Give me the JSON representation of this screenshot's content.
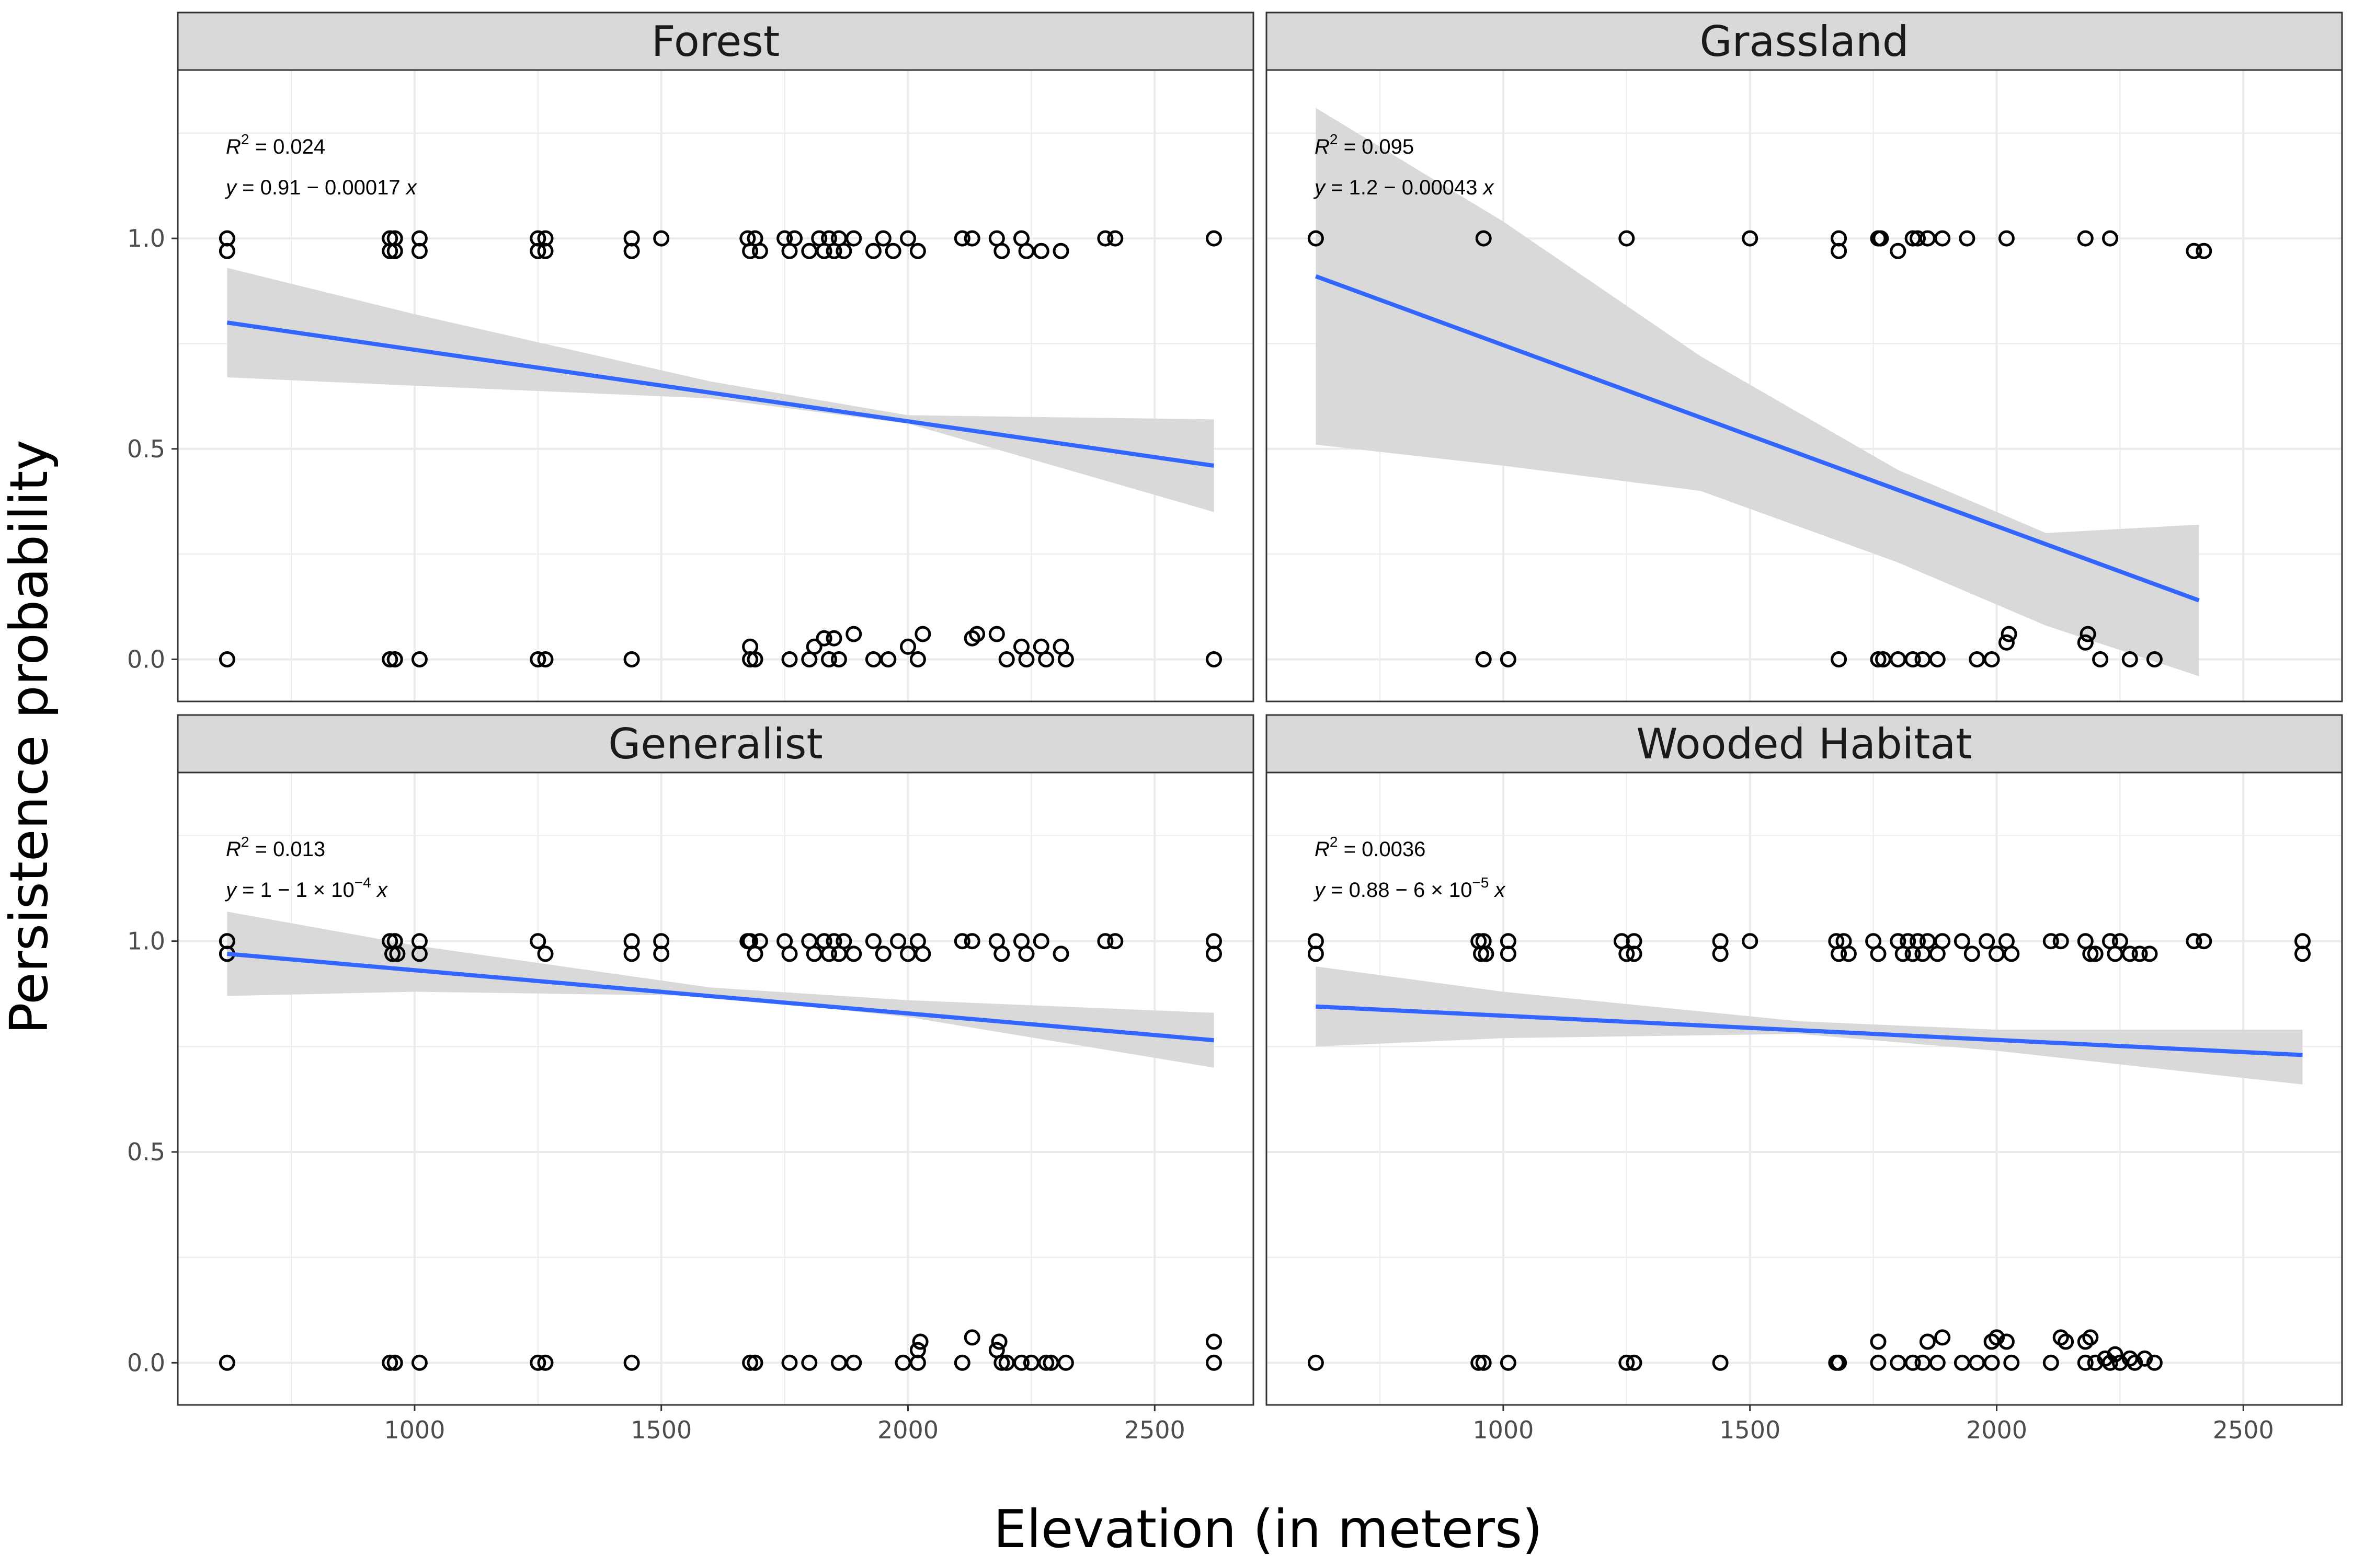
{
  "figure": {
    "xlabel": "Elevation (in meters)",
    "ylabel": "Persistence probability",
    "colors": {
      "line": "#3366ff",
      "ribbon": "#d9d9d9",
      "strip": "#d9d9d9",
      "point": "#000000",
      "grid": "#ebebeb"
    }
  },
  "chart_data": [
    {
      "type": "scatter",
      "facet": "Forest",
      "xlim": [
        520,
        2700
      ],
      "ylim": [
        -0.1,
        1.4
      ],
      "xticks": [
        1000,
        1500,
        2000,
        2500
      ],
      "yticks": [
        0.0,
        0.5,
        1.0
      ],
      "annotation": {
        "r2": "0.024",
        "eq_parts": [
          "0.91 − 0.00017 "
        ]
      },
      "fit": {
        "x": [
          620,
          2620
        ],
        "y": [
          0.8,
          0.46
        ]
      },
      "ribbon": {
        "x": [
          620,
          1000,
          1600,
          2000,
          2620
        ],
        "lower": [
          0.67,
          0.65,
          0.62,
          0.56,
          0.35
        ],
        "upper": [
          0.93,
          0.82,
          0.66,
          0.58,
          0.57
        ]
      },
      "points": [
        [
          620,
          1.0
        ],
        [
          620,
          0.97
        ],
        [
          950,
          1.0
        ],
        [
          950,
          0.97
        ],
        [
          960,
          1.0
        ],
        [
          960,
          0.97
        ],
        [
          1010,
          1.0
        ],
        [
          1010,
          0.97
        ],
        [
          1250,
          1.0
        ],
        [
          1250,
          0.97
        ],
        [
          1265,
          1.0
        ],
        [
          1265,
          0.97
        ],
        [
          1440,
          1.0
        ],
        [
          1440,
          0.97
        ],
        [
          1500,
          1.0
        ],
        [
          1675,
          1.0
        ],
        [
          1680,
          0.97
        ],
        [
          1690,
          1.0
        ],
        [
          1700,
          0.97
        ],
        [
          1750,
          1.0
        ],
        [
          1760,
          0.97
        ],
        [
          1770,
          1.0
        ],
        [
          1800,
          0.97
        ],
        [
          1820,
          1.0
        ],
        [
          1830,
          0.97
        ],
        [
          1840,
          1.0
        ],
        [
          1850,
          0.97
        ],
        [
          1860,
          1.0
        ],
        [
          1870,
          0.97
        ],
        [
          1890,
          1.0
        ],
        [
          1930,
          0.97
        ],
        [
          1950,
          1.0
        ],
        [
          1970,
          0.97
        ],
        [
          2000,
          1.0
        ],
        [
          2020,
          0.97
        ],
        [
          2110,
          1.0
        ],
        [
          2130,
          1.0
        ],
        [
          2180,
          1.0
        ],
        [
          2190,
          0.97
        ],
        [
          2230,
          1.0
        ],
        [
          2240,
          0.97
        ],
        [
          2270,
          0.97
        ],
        [
          2310,
          0.97
        ],
        [
          2400,
          1.0
        ],
        [
          2420,
          1.0
        ],
        [
          2620,
          1.0
        ],
        [
          620,
          0.0
        ],
        [
          950,
          0.0
        ],
        [
          960,
          0.0
        ],
        [
          1010,
          0.0
        ],
        [
          1250,
          0.0
        ],
        [
          1265,
          0.0
        ],
        [
          1440,
          0.0
        ],
        [
          1680,
          0.0
        ],
        [
          1680,
          0.03
        ],
        [
          1690,
          0.0
        ],
        [
          1760,
          0.0
        ],
        [
          1800,
          0.0
        ],
        [
          1810,
          0.03
        ],
        [
          1830,
          0.05
        ],
        [
          1840,
          0.0
        ],
        [
          1850,
          0.05
        ],
        [
          1860,
          0.0
        ],
        [
          1890,
          0.06
        ],
        [
          1930,
          0.0
        ],
        [
          1960,
          0.0
        ],
        [
          2000,
          0.03
        ],
        [
          2020,
          0.0
        ],
        [
          2030,
          0.06
        ],
        [
          2130,
          0.05
        ],
        [
          2140,
          0.06
        ],
        [
          2180,
          0.06
        ],
        [
          2200,
          0.0
        ],
        [
          2230,
          0.03
        ],
        [
          2240,
          0.0
        ],
        [
          2270,
          0.03
        ],
        [
          2280,
          0.0
        ],
        [
          2310,
          0.03
        ],
        [
          2320,
          0.0
        ],
        [
          2620,
          0.0
        ]
      ]
    },
    {
      "type": "scatter",
      "facet": "Grassland",
      "xlim": [
        520,
        2700
      ],
      "ylim": [
        -0.1,
        1.4
      ],
      "xticks": [
        1000,
        1500,
        2000,
        2500
      ],
      "yticks": [
        0.0,
        0.5,
        1.0
      ],
      "annotation": {
        "r2": "0.095",
        "eq_parts": [
          "1.2 − 0.00043 "
        ]
      },
      "fit": {
        "x": [
          620,
          2410
        ],
        "y": [
          0.91,
          0.14
        ]
      },
      "ribbon": {
        "x": [
          620,
          1000,
          1400,
          1800,
          2100,
          2410
        ],
        "lower": [
          0.51,
          0.46,
          0.4,
          0.23,
          0.08,
          -0.04
        ],
        "upper": [
          1.31,
          1.04,
          0.72,
          0.45,
          0.3,
          0.32
        ]
      },
      "points": [
        [
          620,
          1.0
        ],
        [
          960,
          1.0
        ],
        [
          1250,
          1.0
        ],
        [
          1500,
          1.0
        ],
        [
          1680,
          1.0
        ],
        [
          1680,
          0.97
        ],
        [
          1760,
          1.0
        ],
        [
          1765,
          1.0
        ],
        [
          1800,
          0.97
        ],
        [
          1830,
          1.0
        ],
        [
          1840,
          1.0
        ],
        [
          1860,
          1.0
        ],
        [
          1890,
          1.0
        ],
        [
          1940,
          1.0
        ],
        [
          2020,
          1.0
        ],
        [
          2180,
          1.0
        ],
        [
          2230,
          1.0
        ],
        [
          2400,
          0.97
        ],
        [
          2420,
          0.97
        ],
        [
          960,
          0.0
        ],
        [
          1010,
          0.0
        ],
        [
          1680,
          0.0
        ],
        [
          1760,
          0.0
        ],
        [
          1770,
          0.0
        ],
        [
          1800,
          0.0
        ],
        [
          1830,
          0.0
        ],
        [
          1850,
          0.0
        ],
        [
          1880,
          0.0
        ],
        [
          1960,
          0.0
        ],
        [
          1990,
          0.0
        ],
        [
          2020,
          0.04
        ],
        [
          2025,
          0.06
        ],
        [
          2180,
          0.04
        ],
        [
          2185,
          0.06
        ],
        [
          2210,
          0.0
        ],
        [
          2270,
          0.0
        ],
        [
          2320,
          0.0
        ]
      ]
    },
    {
      "type": "scatter",
      "facet": "Generalist",
      "xlim": [
        520,
        2700
      ],
      "ylim": [
        -0.1,
        1.4
      ],
      "xticks": [
        1000,
        1500,
        2000,
        2500
      ],
      "yticks": [
        0.0,
        0.5,
        1.0
      ],
      "annotation": {
        "r2": "0.013",
        "eq_parts": [
          "1 − 1 × 10",
          "−4",
          " "
        ]
      },
      "fit": {
        "x": [
          620,
          2620
        ],
        "y": [
          0.97,
          0.765
        ]
      },
      "ribbon": {
        "x": [
          620,
          1000,
          1600,
          2000,
          2620
        ],
        "lower": [
          0.87,
          0.88,
          0.87,
          0.82,
          0.7
        ],
        "upper": [
          1.07,
          0.99,
          0.89,
          0.86,
          0.83
        ]
      },
      "points": [
        [
          620,
          1.0
        ],
        [
          620,
          0.97
        ],
        [
          950,
          1.0
        ],
        [
          955,
          0.97
        ],
        [
          960,
          1.0
        ],
        [
          965,
          0.97
        ],
        [
          1010,
          1.0
        ],
        [
          1010,
          0.97
        ],
        [
          1250,
          1.0
        ],
        [
          1265,
          0.97
        ],
        [
          1440,
          1.0
        ],
        [
          1440,
          0.97
        ],
        [
          1500,
          1.0
        ],
        [
          1500,
          0.97
        ],
        [
          1675,
          1.0
        ],
        [
          1680,
          1.0
        ],
        [
          1690,
          0.97
        ],
        [
          1700,
          1.0
        ],
        [
          1750,
          1.0
        ],
        [
          1760,
          0.97
        ],
        [
          1800,
          1.0
        ],
        [
          1810,
          0.97
        ],
        [
          1830,
          1.0
        ],
        [
          1840,
          0.97
        ],
        [
          1850,
          1.0
        ],
        [
          1860,
          0.97
        ],
        [
          1870,
          1.0
        ],
        [
          1890,
          0.97
        ],
        [
          1930,
          1.0
        ],
        [
          1950,
          0.97
        ],
        [
          1980,
          1.0
        ],
        [
          2000,
          0.97
        ],
        [
          2020,
          1.0
        ],
        [
          2030,
          0.97
        ],
        [
          2110,
          1.0
        ],
        [
          2130,
          1.0
        ],
        [
          2180,
          1.0
        ],
        [
          2190,
          0.97
        ],
        [
          2230,
          1.0
        ],
        [
          2240,
          0.97
        ],
        [
          2270,
          1.0
        ],
        [
          2310,
          0.97
        ],
        [
          2400,
          1.0
        ],
        [
          2420,
          1.0
        ],
        [
          2620,
          1.0
        ],
        [
          2620,
          0.97
        ],
        [
          620,
          0.0
        ],
        [
          950,
          0.0
        ],
        [
          960,
          0.0
        ],
        [
          1010,
          0.0
        ],
        [
          1250,
          0.0
        ],
        [
          1265,
          0.0
        ],
        [
          1440,
          0.0
        ],
        [
          1680,
          0.0
        ],
        [
          1690,
          0.0
        ],
        [
          1760,
          0.0
        ],
        [
          1800,
          0.0
        ],
        [
          1860,
          0.0
        ],
        [
          1890,
          0.0
        ],
        [
          1990,
          0.0
        ],
        [
          2020,
          0.03
        ],
        [
          2020,
          0.0
        ],
        [
          2025,
          0.05
        ],
        [
          2130,
          0.06
        ],
        [
          2110,
          0.0
        ],
        [
          2180,
          0.03
        ],
        [
          2185,
          0.05
        ],
        [
          2190,
          0.0
        ],
        [
          2200,
          0.0
        ],
        [
          2230,
          0.0
        ],
        [
          2250,
          0.0
        ],
        [
          2280,
          0.0
        ],
        [
          2290,
          0.0
        ],
        [
          2320,
          0.0
        ],
        [
          2620,
          0.05
        ],
        [
          2620,
          0.0
        ]
      ]
    },
    {
      "type": "scatter",
      "facet": "Wooded Habitat",
      "xlim": [
        520,
        2700
      ],
      "ylim": [
        -0.1,
        1.4
      ],
      "xticks": [
        1000,
        1500,
        2000,
        2500
      ],
      "yticks": [
        0.0,
        0.5,
        1.0
      ],
      "annotation": {
        "r2": "0.0036",
        "eq_parts": [
          "0.88 − 6 × 10",
          "−5",
          " "
        ]
      },
      "fit": {
        "x": [
          620,
          2620
        ],
        "y": [
          0.845,
          0.73
        ]
      },
      "ribbon": {
        "x": [
          620,
          1000,
          1600,
          2000,
          2620
        ],
        "lower": [
          0.75,
          0.77,
          0.78,
          0.74,
          0.66
        ],
        "upper": [
          0.94,
          0.88,
          0.81,
          0.79,
          0.79
        ]
      },
      "points": [
        [
          620,
          1.0
        ],
        [
          620,
          0.97
        ],
        [
          950,
          1.0
        ],
        [
          955,
          0.97
        ],
        [
          960,
          1.0
        ],
        [
          965,
          0.97
        ],
        [
          1010,
          1.0
        ],
        [
          1010,
          0.97
        ],
        [
          1240,
          1.0
        ],
        [
          1250,
          0.97
        ],
        [
          1265,
          1.0
        ],
        [
          1265,
          0.97
        ],
        [
          1440,
          1.0
        ],
        [
          1440,
          0.97
        ],
        [
          1500,
          1.0
        ],
        [
          1675,
          1.0
        ],
        [
          1680,
          0.97
        ],
        [
          1690,
          1.0
        ],
        [
          1700,
          0.97
        ],
        [
          1750,
          1.0
        ],
        [
          1760,
          0.97
        ],
        [
          1800,
          1.0
        ],
        [
          1810,
          0.97
        ],
        [
          1820,
          1.0
        ],
        [
          1830,
          0.97
        ],
        [
          1840,
          1.0
        ],
        [
          1850,
          0.97
        ],
        [
          1860,
          1.0
        ],
        [
          1880,
          0.97
        ],
        [
          1890,
          1.0
        ],
        [
          1930,
          1.0
        ],
        [
          1950,
          0.97
        ],
        [
          1980,
          1.0
        ],
        [
          2000,
          0.97
        ],
        [
          2020,
          1.0
        ],
        [
          2030,
          0.97
        ],
        [
          2110,
          1.0
        ],
        [
          2130,
          1.0
        ],
        [
          2180,
          1.0
        ],
        [
          2190,
          0.97
        ],
        [
          2200,
          0.97
        ],
        [
          2230,
          1.0
        ],
        [
          2240,
          0.97
        ],
        [
          2250,
          1.0
        ],
        [
          2270,
          0.97
        ],
        [
          2290,
          0.97
        ],
        [
          2310,
          0.97
        ],
        [
          2400,
          1.0
        ],
        [
          2420,
          1.0
        ],
        [
          2620,
          1.0
        ],
        [
          2620,
          0.97
        ],
        [
          620,
          0.0
        ],
        [
          950,
          0.0
        ],
        [
          960,
          0.0
        ],
        [
          1010,
          0.0
        ],
        [
          1250,
          0.0
        ],
        [
          1265,
          0.0
        ],
        [
          1440,
          0.0
        ],
        [
          1675,
          0.0
        ],
        [
          1680,
          0.0
        ],
        [
          1760,
          0.0
        ],
        [
          1760,
          0.05
        ],
        [
          1800,
          0.0
        ],
        [
          1830,
          0.0
        ],
        [
          1850,
          0.0
        ],
        [
          1860,
          0.05
        ],
        [
          1880,
          0.0
        ],
        [
          1890,
          0.06
        ],
        [
          1930,
          0.0
        ],
        [
          1960,
          0.0
        ],
        [
          1990,
          0.0
        ],
        [
          1990,
          0.05
        ],
        [
          2000,
          0.06
        ],
        [
          2020,
          0.05
        ],
        [
          2030,
          0.0
        ],
        [
          2110,
          0.0
        ],
        [
          2130,
          0.06
        ],
        [
          2140,
          0.05
        ],
        [
          2180,
          0.0
        ],
        [
          2180,
          0.05
        ],
        [
          2190,
          0.06
        ],
        [
          2200,
          0.0
        ],
        [
          2220,
          0.01
        ],
        [
          2230,
          0.0
        ],
        [
          2240,
          0.02
        ],
        [
          2250,
          0.0
        ],
        [
          2270,
          0.01
        ],
        [
          2280,
          0.0
        ],
        [
          2300,
          0.01
        ],
        [
          2320,
          0.0
        ]
      ]
    }
  ]
}
